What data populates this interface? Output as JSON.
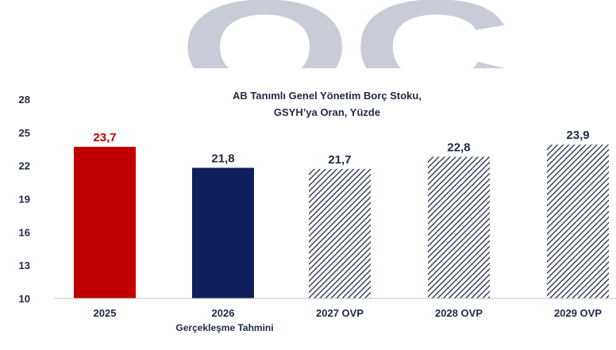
{
  "chart_data": {
    "type": "bar",
    "title_lines": [
      "AB Tanımlı Genel Yönetim Borç Stoku,",
      "GSYH’ya Oran, Yüzde"
    ],
    "categories": [
      "2025",
      "2026",
      "2027 OVP",
      "2028 OVP",
      "2029 OVP"
    ],
    "values": [
      23.7,
      21.8,
      21.7,
      22.8,
      23.9
    ],
    "value_labels": [
      "23,7",
      "21,8",
      "21,7",
      "22,8",
      "23,9"
    ],
    "bar_styles": [
      "solid",
      "solid",
      "hatched",
      "hatched",
      "hatched"
    ],
    "bar_colors": [
      "#c00000",
      "#0e1f5b",
      "#1f2a44",
      "#1f2a44",
      "#1f2a44"
    ],
    "label_colors": [
      "#c00000",
      "#1f2a44",
      "#1f2a44",
      "#1f2a44",
      "#1f2a44"
    ],
    "ylim": [
      10,
      28
    ],
    "yticks": [
      10,
      13,
      16,
      19,
      22,
      25,
      28
    ],
    "xlabel": "",
    "ylabel": "",
    "grid": false,
    "annotation": "Gerçekleşme Tahmini",
    "watermark": "OC",
    "watermark_color": "#c8ccd6"
  }
}
